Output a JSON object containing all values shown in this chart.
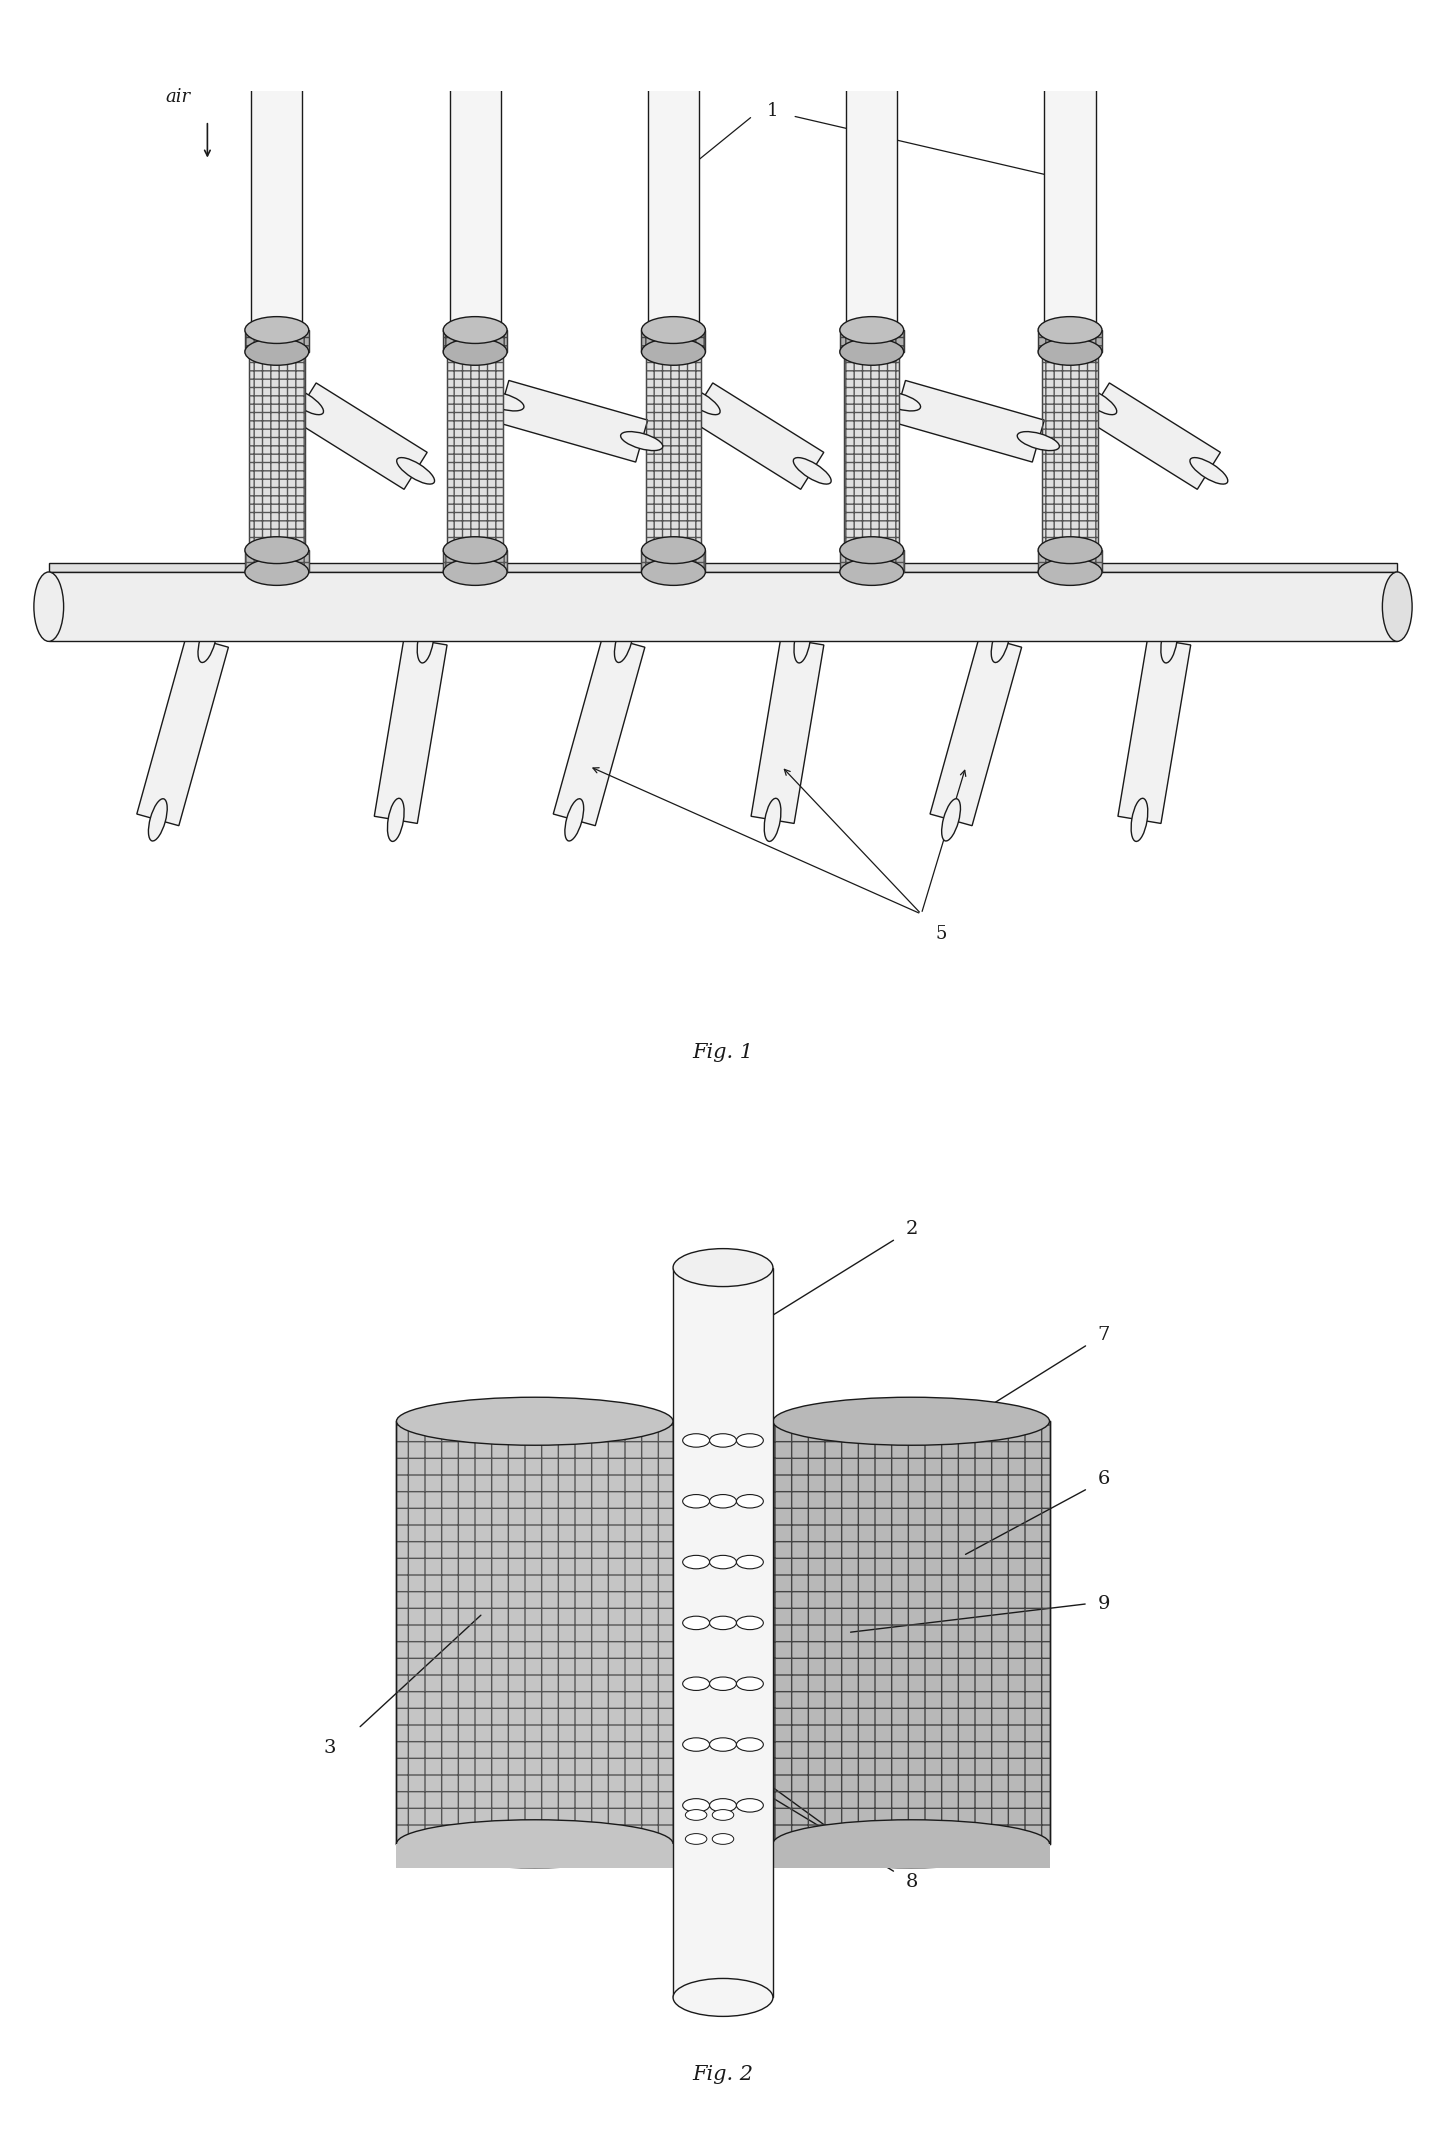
{
  "fig1_label": "Fig. 1",
  "fig2_label": "Fig. 2",
  "label_1": "1",
  "label_2": "2",
  "label_3": "3",
  "label_5": "5",
  "label_6": "6",
  "label_7": "7",
  "label_8": "8",
  "label_9": "9",
  "air_label": "air",
  "background_color": "#ffffff",
  "line_color": "#1a1a1a",
  "tube_fill": "#f5f5f5",
  "electrode_fill_light": "#e8e8e8",
  "electrode_fill_dark": "#cccccc",
  "ring_fill": "#bbbbbb",
  "mesh_fill_left": "#c8c8c8",
  "mesh_fill_right": "#b0b0b0",
  "pipe_fill": "#f0f0f0",
  "manifold_fill": "#eeeeee",
  "angled_pipe_fill": "#f0f0f0"
}
